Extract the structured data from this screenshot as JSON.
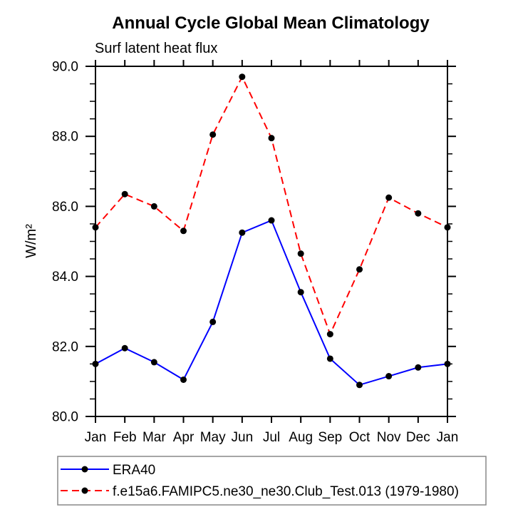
{
  "title": "Annual Cycle Global Mean Climatology",
  "subtitle": "Surf latent heat flux",
  "ylabel": "W/m²",
  "chart_data": {
    "type": "line",
    "categories": [
      "Jan",
      "Feb",
      "Mar",
      "Apr",
      "May",
      "Jun",
      "Jul",
      "Aug",
      "Sep",
      "Oct",
      "Nov",
      "Dec",
      "Jan"
    ],
    "series": [
      {
        "name": "ERA40",
        "color": "#0000ff",
        "line_style": "solid",
        "marker": "filled-circle",
        "marker_color": "#000000",
        "values": [
          81.5,
          81.95,
          81.55,
          81.05,
          82.7,
          85.25,
          85.6,
          83.55,
          81.65,
          80.9,
          81.15,
          81.4,
          81.5
        ]
      },
      {
        "name": "f.e15a6.FAMIPC5.ne30_ne30.Club_Test.013 (1979-1980)",
        "color": "#ff0000",
        "line_style": "dashed",
        "marker": "filled-circle",
        "marker_color": "#000000",
        "values": [
          85.4,
          86.35,
          86.0,
          85.3,
          88.05,
          89.7,
          87.95,
          84.65,
          82.35,
          84.2,
          86.25,
          85.8,
          85.4
        ]
      }
    ],
    "xlabel": "",
    "ylim": [
      80.0,
      90.0
    ],
    "ytick_major_step": 2.0,
    "ytick_minor_step": 0.5,
    "ytick_labels": [
      "80.0",
      "82.0",
      "84.0",
      "86.0",
      "88.0",
      "90.0"
    ],
    "grid": false,
    "legend_position": "bottom",
    "axis_color": "#000000"
  }
}
